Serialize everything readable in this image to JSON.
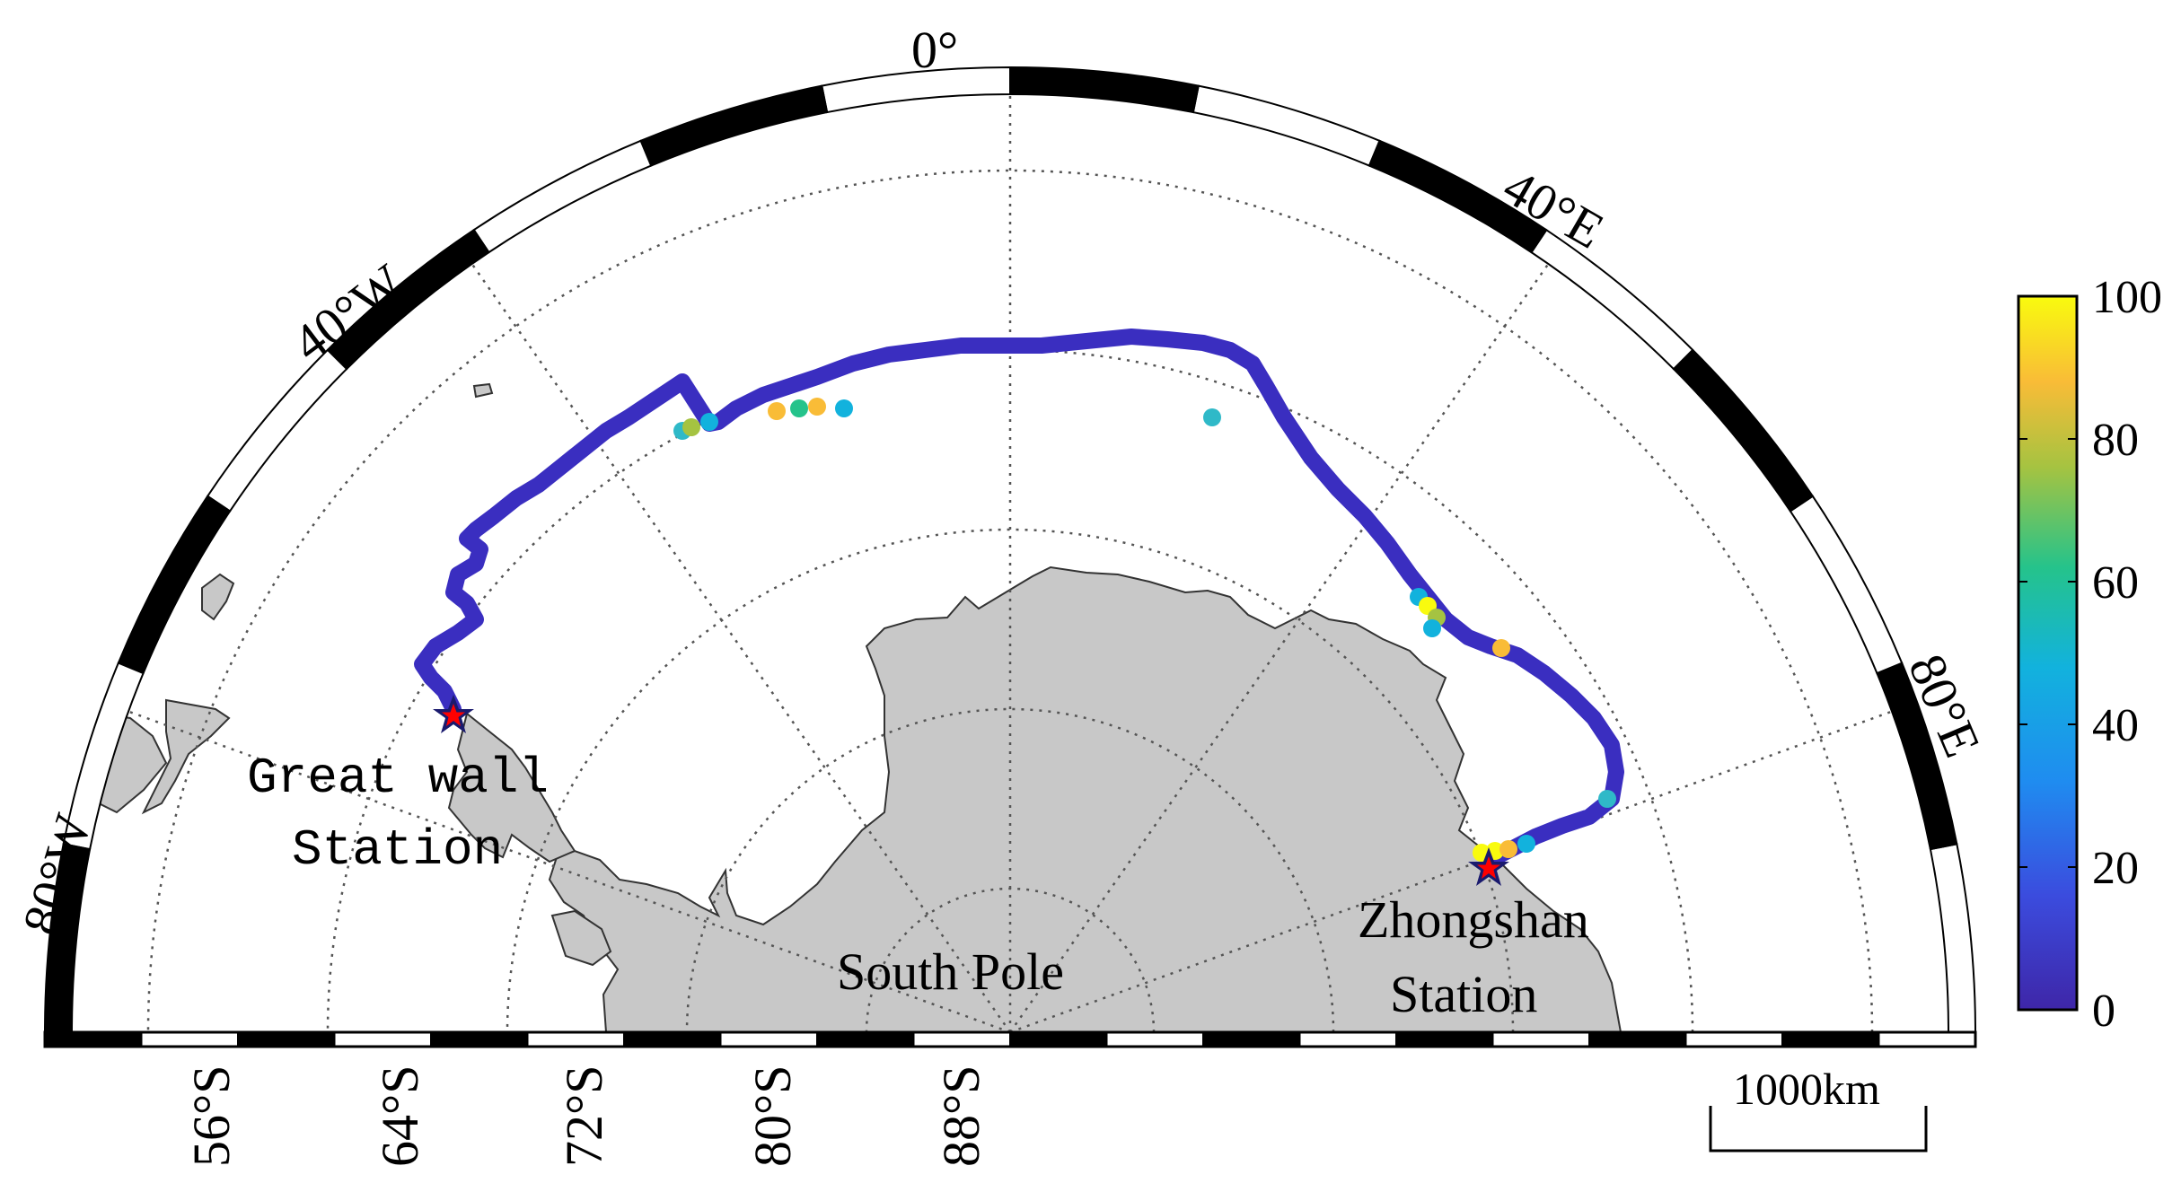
{
  "map": {
    "longitude_labels": [
      {
        "id": "lon-0",
        "text": "0°",
        "lon": 0
      },
      {
        "id": "lon-40e",
        "text": "40°E",
        "lon": 40
      },
      {
        "id": "lon-80e",
        "text": "80°E",
        "lon": 80
      },
      {
        "id": "lon-40w",
        "text": "40°W",
        "lon": -40
      },
      {
        "id": "lon-80w",
        "text": "80°W",
        "lon": -80
      }
    ],
    "latitude_labels": [
      {
        "id": "lat-56s",
        "text": "56°S"
      },
      {
        "id": "lat-64s",
        "text": "64°S"
      },
      {
        "id": "lat-72s",
        "text": "72°S"
      },
      {
        "id": "lat-80s",
        "text": "80°S"
      },
      {
        "id": "lat-88s",
        "text": "88°S"
      }
    ],
    "place_labels": {
      "great_wall_line1": "Great wall",
      "great_wall_line2": "Station",
      "south_pole": "South Pole",
      "zhongshan_line1": "Zhongshan",
      "zhongshan_line2": "Station"
    },
    "scale_bar": {
      "label": "1000km",
      "length_km": 1000
    },
    "stations": [
      {
        "name": "Great wall Station",
        "marker": "red-star"
      },
      {
        "name": "Zhongshan Station",
        "marker": "red-star"
      }
    ],
    "colors": {
      "land": "#c8c8c8",
      "coast": "#333333",
      "star_fill": "#ff0000",
      "star_outline": "#1a1a6e",
      "track_base": "#3a2ec0"
    }
  },
  "colorbar": {
    "ticks": [
      "0",
      "20",
      "40",
      "60",
      "80",
      "100"
    ],
    "min": 0,
    "max": 100,
    "colormap": "parula",
    "stops": [
      "#3e26a8",
      "#2a63ee",
      "#12b2dd",
      "#26c48a",
      "#a5c341",
      "#f9bc37",
      "#f9fb0e"
    ]
  },
  "track": {
    "description_values": "cruise track colored by value 0-100",
    "highlights": [
      {
        "segment": "near-great-wall-north",
        "value": 60
      },
      {
        "segment": "weddell-north",
        "value": 80
      },
      {
        "segment": "east-descent",
        "value": 45
      },
      {
        "segment": "east-descent-2",
        "value": 75
      },
      {
        "segment": "near-zhongshan",
        "value": 95
      }
    ],
    "base_value": 5
  }
}
